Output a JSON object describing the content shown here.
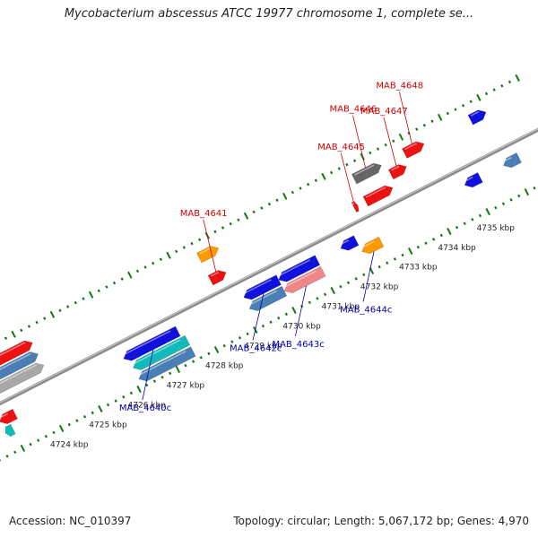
{
  "title": "Mycobacterium abscessus ATCC 19977 chromosome 1, complete se...",
  "footer": {
    "accession": "Accession: NC_010397",
    "summary": "Topology: circular; Length: 5,067,172 bp; Genes: 4,970"
  },
  "colors": {
    "forward_label": "#cc0000",
    "reverse_label": "#0000aa",
    "backbone": "#8a8a8a",
    "tick": "#117711",
    "red": "#ee1111",
    "blue": "#1111dd",
    "orange": "#ff9900",
    "gray": "#666666",
    "steel": "#4a7fb5",
    "cyan": "#11bbbb",
    "pink": "#ee8888",
    "lightgray": "#a8a8a8"
  },
  "scale": {
    "unit": "kbp",
    "ticks": [
      {
        "label": "4724 kbp",
        "value": 4724
      },
      {
        "label": "4725 kbp",
        "value": 4725
      },
      {
        "label": "4726 kbp",
        "value": 4726
      },
      {
        "label": "4727 kbp",
        "value": 4727
      },
      {
        "label": "4728 kbp",
        "value": 4728
      },
      {
        "label": "4729 kbp",
        "value": 4729
      },
      {
        "label": "4730 kbp",
        "value": 4730
      },
      {
        "label": "4731 kbp",
        "value": 4731
      },
      {
        "label": "4732 kbp",
        "value": 4732
      },
      {
        "label": "4733 kbp",
        "value": 4733
      },
      {
        "label": "4734 kbp",
        "value": 4734
      },
      {
        "label": "4735 kbp",
        "value": 4735
      }
    ]
  },
  "genes": [
    {
      "name": "",
      "strand": "+",
      "start": 4722.9,
      "end": 4724.3,
      "color": "lightgray",
      "lane": 1
    },
    {
      "name": "",
      "strand": "+",
      "start": 4723.0,
      "end": 4724.3,
      "color": "steel",
      "lane": 2
    },
    {
      "name": "",
      "strand": "+",
      "start": 4723.1,
      "end": 4724.3,
      "color": "red",
      "lane": 3
    },
    {
      "name": "",
      "strand": "-",
      "start": 4722.8,
      "end": 4723.2,
      "color": "red",
      "lane": 1
    },
    {
      "name": "",
      "strand": "-",
      "start": 4722.8,
      "end": 4723.0,
      "color": "cyan",
      "lane": 2
    },
    {
      "name": "MAB_4640c",
      "strand": "-",
      "start": 4726.0,
      "end": 4727.4,
      "color": "blue",
      "lane": 1
    },
    {
      "name": "",
      "strand": "-",
      "start": 4726.1,
      "end": 4727.5,
      "color": "cyan",
      "lane": 2
    },
    {
      "name": "",
      "strand": "-",
      "start": 4726.1,
      "end": 4727.5,
      "color": "steel",
      "lane": 3
    },
    {
      "name": "MAB_4641",
      "strand": "+",
      "start": 4728.6,
      "end": 4729.0,
      "color": "red",
      "lane": 1
    },
    {
      "name": "",
      "strand": "+",
      "start": 4728.6,
      "end": 4729.1,
      "color": "orange",
      "lane": 3
    },
    {
      "name": "MAB_4642c",
      "strand": "-",
      "start": 4729.1,
      "end": 4730.0,
      "color": "blue",
      "lane": 1
    },
    {
      "name": "",
      "strand": "-",
      "start": 4729.1,
      "end": 4730.0,
      "color": "steel",
      "lane": 2
    },
    {
      "name": "",
      "strand": "-",
      "start": 4730.0,
      "end": 4731.0,
      "color": "blue",
      "lane": 1
    },
    {
      "name": "MAB_4643c",
      "strand": "-",
      "start": 4730.0,
      "end": 4731.0,
      "color": "pink",
      "lane": 2
    },
    {
      "name": "",
      "strand": "-",
      "start": 4731.6,
      "end": 4732.0,
      "color": "blue",
      "lane": 1
    },
    {
      "name": "MAB_4644c",
      "strand": "-",
      "start": 4732.0,
      "end": 4732.5,
      "color": "orange",
      "lane": 2
    },
    {
      "name": "MAB_4645",
      "strand": "+",
      "start": 4732.3,
      "end": 4732.4,
      "color": "red",
      "lane": 1
    },
    {
      "name": "MAB_4646",
      "strand": "+",
      "start": 4732.6,
      "end": 4733.3,
      "color": "gray",
      "lane": 3
    },
    {
      "name": "",
      "strand": "+",
      "start": 4732.6,
      "end": 4733.3,
      "color": "red",
      "lane": 1
    },
    {
      "name": "MAB_4647",
      "strand": "+",
      "start": 4733.4,
      "end": 4733.8,
      "color": "red",
      "lane": 2
    },
    {
      "name": "MAB_4648",
      "strand": "+",
      "start": 4733.9,
      "end": 4734.4,
      "color": "red",
      "lane": 3
    },
    {
      "name": "",
      "strand": "-",
      "start": 4734.8,
      "end": 4735.2,
      "color": "blue",
      "lane": 1
    },
    {
      "name": "",
      "strand": "+",
      "start": 4735.6,
      "end": 4736.0,
      "color": "blue",
      "lane": 3
    },
    {
      "name": "",
      "strand": "-",
      "start": 4735.8,
      "end": 4736.2,
      "color": "steel",
      "lane": 1
    }
  ]
}
